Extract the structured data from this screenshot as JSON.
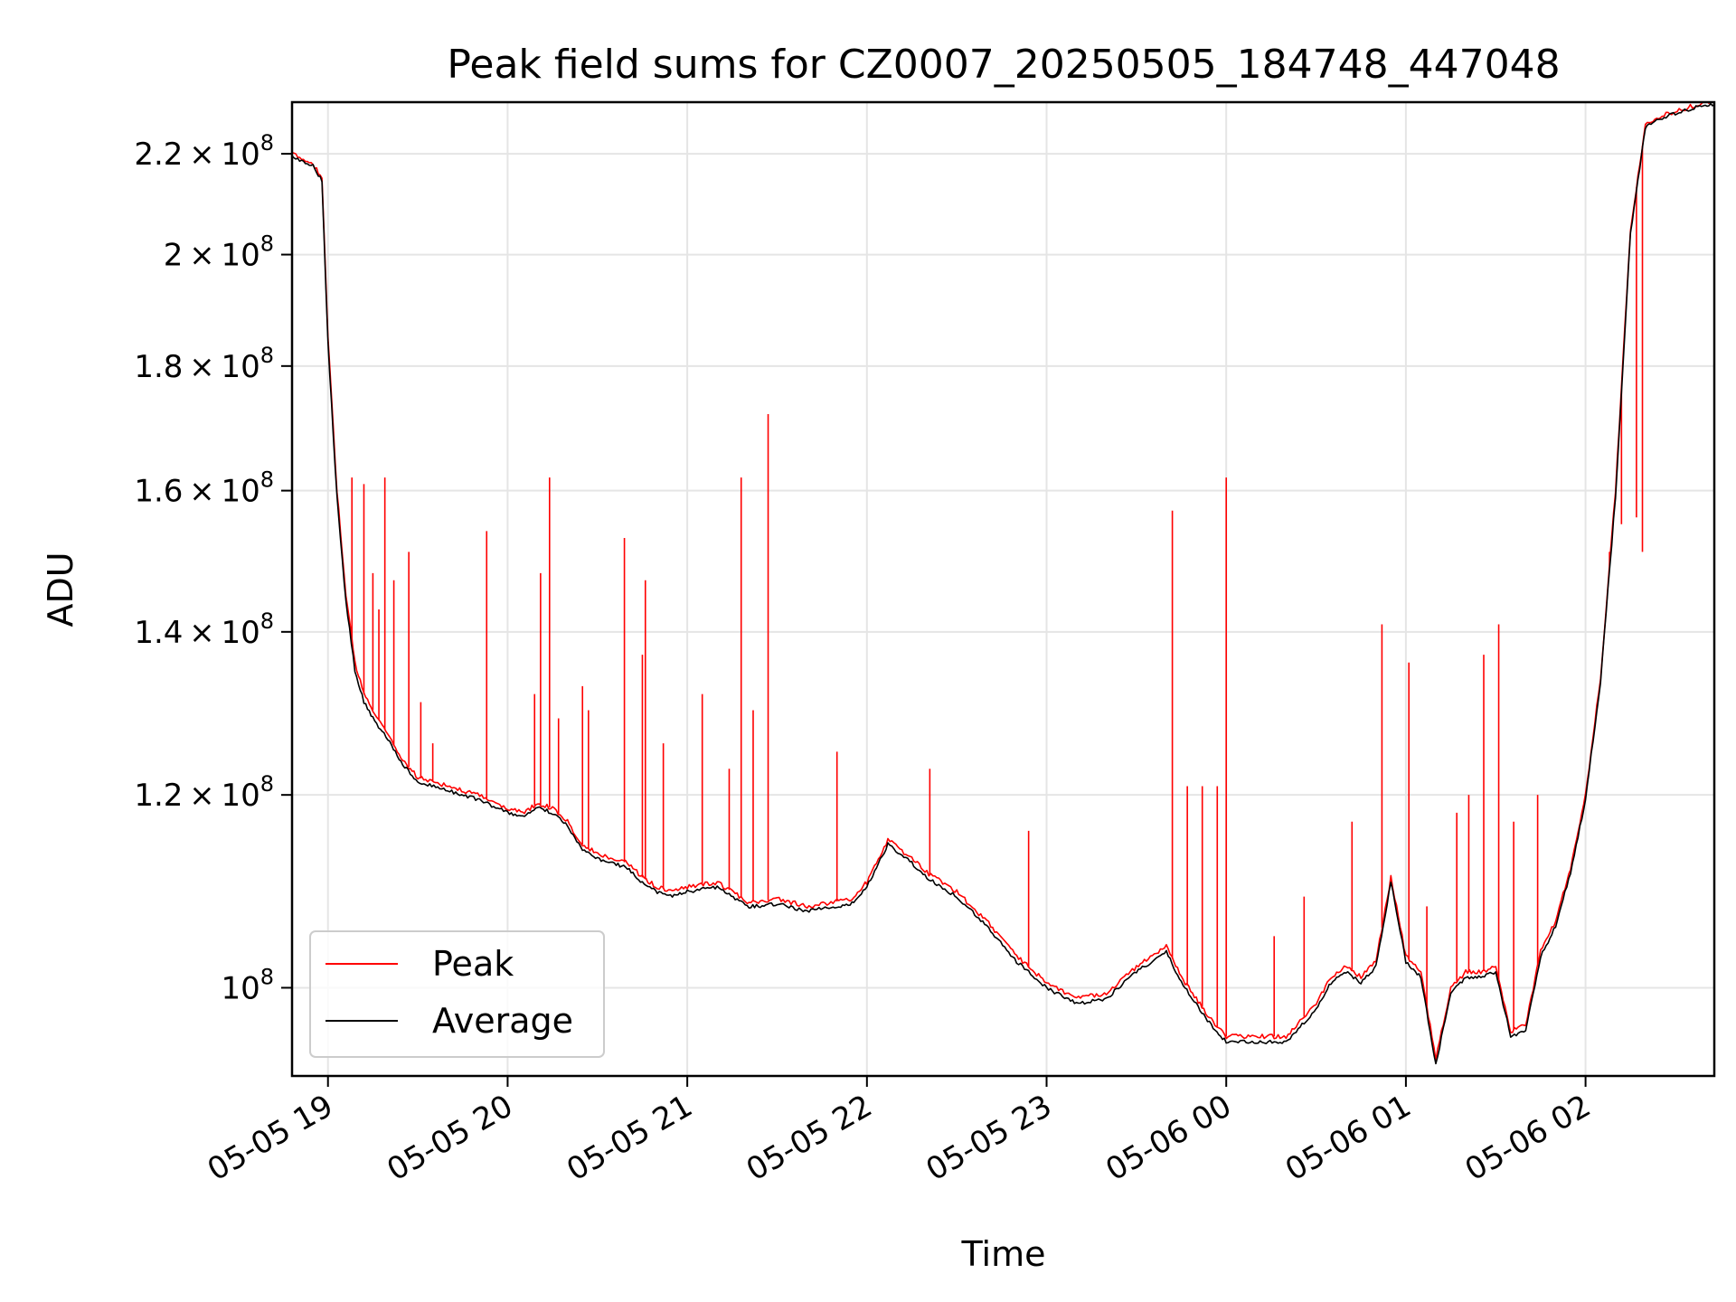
{
  "chart_data": {
    "type": "line",
    "title": "Peak field sums for CZ0007_20250505_184748_447048",
    "xlabel": "Time",
    "ylabel": "ADU",
    "y_scale": "log",
    "xlim": [
      "2025-05-05 18:48",
      "2025-05-06 02:43"
    ],
    "ylim": [
      92000000,
      231000000
    ],
    "x_ticks": [
      "05-05 19",
      "05-05 20",
      "05-05 21",
      "05-05 22",
      "05-05 23",
      "05-06 00",
      "05-06 01",
      "05-06 02"
    ],
    "y_ticks": [
      {
        "value": 100000000,
        "mantissa": "",
        "exponent": "8"
      },
      {
        "value": 120000000,
        "mantissa": "1.2",
        "exponent": "8"
      },
      {
        "value": 140000000,
        "mantissa": "1.4",
        "exponent": "8"
      },
      {
        "value": 160000000,
        "mantissa": "1.6",
        "exponent": "8"
      },
      {
        "value": 180000000,
        "mantissa": "1.8",
        "exponent": "8"
      },
      {
        "value": 200000000,
        "mantissa": "2",
        "exponent": "8"
      },
      {
        "value": 220000000,
        "mantissa": "2.2",
        "exponent": "8"
      }
    ],
    "grid": true,
    "legend": "lower-left",
    "series": [
      {
        "name": "Peak",
        "color": "#ff0000",
        "x": [
          "2025-05-05 18:48",
          "2025-05-05 18:55",
          "2025-05-05 18:58",
          "2025-05-05 19:00",
          "2025-05-05 19:03",
          "2025-05-05 19:06",
          "2025-05-05 19:09",
          "2025-05-05 19:12",
          "2025-05-05 19:15",
          "2025-05-05 19:20",
          "2025-05-05 19:25",
          "2025-05-05 19:30",
          "2025-05-05 19:40",
          "2025-05-05 19:50",
          "2025-05-05 20:00",
          "2025-05-05 20:05",
          "2025-05-05 20:10",
          "2025-05-05 20:15",
          "2025-05-05 20:20",
          "2025-05-05 20:25",
          "2025-05-05 20:30",
          "2025-05-05 20:35",
          "2025-05-05 20:40",
          "2025-05-05 20:45",
          "2025-05-05 20:50",
          "2025-05-05 20:55",
          "2025-05-05 21:00",
          "2025-05-05 21:10",
          "2025-05-05 21:20",
          "2025-05-05 21:25",
          "2025-05-05 21:30",
          "2025-05-05 21:40",
          "2025-05-05 21:50",
          "2025-05-05 21:55",
          "2025-05-05 22:00",
          "2025-05-05 22:07",
          "2025-05-05 22:15",
          "2025-05-05 22:20",
          "2025-05-05 22:30",
          "2025-05-05 22:40",
          "2025-05-05 22:50",
          "2025-05-05 23:00",
          "2025-05-05 23:10",
          "2025-05-05 23:20",
          "2025-05-05 23:30",
          "2025-05-05 23:40",
          "2025-05-05 23:45",
          "2025-05-05 23:50",
          "2025-05-05 23:55",
          "2025-05-06 00:00",
          "2025-05-06 00:10",
          "2025-05-06 00:20",
          "2025-05-06 00:30",
          "2025-05-06 00:35",
          "2025-05-06 00:40",
          "2025-05-06 00:45",
          "2025-05-06 00:50",
          "2025-05-06 00:55",
          "2025-05-06 01:00",
          "2025-05-06 01:05",
          "2025-05-06 01:10",
          "2025-05-06 01:15",
          "2025-05-06 01:20",
          "2025-05-06 01:25",
          "2025-05-06 01:30",
          "2025-05-06 01:35",
          "2025-05-06 01:40",
          "2025-05-06 01:45",
          "2025-05-06 01:50",
          "2025-05-06 01:55",
          "2025-05-06 02:00",
          "2025-05-06 02:05",
          "2025-05-06 02:10",
          "2025-05-06 02:15",
          "2025-05-06 02:20",
          "2025-05-06 02:25",
          "2025-05-06 02:30",
          "2025-05-06 02:35",
          "2025-05-06 02:40",
          "2025-05-06 02:43"
        ],
        "values": [
          220000000,
          218000000,
          215000000,
          185000000,
          160000000,
          145000000,
          136000000,
          132000000,
          130000000,
          127000000,
          124000000,
          122000000,
          121000000,
          120000000,
          118500000,
          118000000,
          119000000,
          118500000,
          117000000,
          114500000,
          113500000,
          113000000,
          112500000,
          111000000,
          110000000,
          109500000,
          110000000,
          110500000,
          108500000,
          108500000,
          108800000,
          108000000,
          108500000,
          108800000,
          110500000,
          115000000,
          113000000,
          111500000,
          109500000,
          106500000,
          103000000,
          100500000,
          99000000,
          99500000,
          102000000,
          104000000,
          101000000,
          99000000,
          97000000,
          95500000,
          95500000,
          95500000,
          98500000,
          101000000,
          102000000,
          101000000,
          102500000,
          111000000,
          103000000,
          101500000,
          93500000,
          100000000,
          101500000,
          101500000,
          102000000,
          96000000,
          96500000,
          103500000,
          106500000,
          112000000,
          120000000,
          134000000,
          160000000,
          205000000,
          226000000,
          228000000,
          229000000,
          230000000,
          231000000,
          231000000
        ]
      },
      {
        "name": "Average",
        "color": "#000000",
        "x": [
          "2025-05-05 18:48",
          "2025-05-05 18:55",
          "2025-05-05 18:58",
          "2025-05-05 19:00",
          "2025-05-05 19:03",
          "2025-05-05 19:06",
          "2025-05-05 19:09",
          "2025-05-05 19:12",
          "2025-05-05 19:15",
          "2025-05-05 19:20",
          "2025-05-05 19:25",
          "2025-05-05 19:30",
          "2025-05-05 19:40",
          "2025-05-05 19:50",
          "2025-05-05 20:00",
          "2025-05-05 20:05",
          "2025-05-05 20:10",
          "2025-05-05 20:15",
          "2025-05-05 20:20",
          "2025-05-05 20:25",
          "2025-05-05 20:30",
          "2025-05-05 20:35",
          "2025-05-05 20:40",
          "2025-05-05 20:45",
          "2025-05-05 20:50",
          "2025-05-05 20:55",
          "2025-05-05 21:00",
          "2025-05-05 21:10",
          "2025-05-05 21:20",
          "2025-05-05 21:25",
          "2025-05-05 21:30",
          "2025-05-05 21:40",
          "2025-05-05 21:50",
          "2025-05-05 21:55",
          "2025-05-05 22:00",
          "2025-05-05 22:07",
          "2025-05-05 22:15",
          "2025-05-05 22:20",
          "2025-05-05 22:30",
          "2025-05-05 22:40",
          "2025-05-05 22:50",
          "2025-05-05 23:00",
          "2025-05-05 23:10",
          "2025-05-05 23:20",
          "2025-05-05 23:30",
          "2025-05-05 23:40",
          "2025-05-05 23:45",
          "2025-05-05 23:50",
          "2025-05-05 23:55",
          "2025-05-06 00:00",
          "2025-05-06 00:10",
          "2025-05-06 00:20",
          "2025-05-06 00:30",
          "2025-05-06 00:35",
          "2025-05-06 00:40",
          "2025-05-06 00:45",
          "2025-05-06 00:50",
          "2025-05-06 00:55",
          "2025-05-06 01:00",
          "2025-05-06 01:05",
          "2025-05-06 01:10",
          "2025-05-06 01:15",
          "2025-05-06 01:20",
          "2025-05-06 01:25",
          "2025-05-06 01:30",
          "2025-05-06 01:35",
          "2025-05-06 01:40",
          "2025-05-06 01:45",
          "2025-05-06 01:50",
          "2025-05-06 01:55",
          "2025-05-06 02:00",
          "2025-05-06 02:05",
          "2025-05-06 02:10",
          "2025-05-06 02:15",
          "2025-05-06 02:20",
          "2025-05-06 02:25",
          "2025-05-06 02:30",
          "2025-05-06 02:35",
          "2025-05-06 02:40",
          "2025-05-06 02:43"
        ],
        "values": [
          219500000,
          217500000,
          214500000,
          184000000,
          159000000,
          144000000,
          135000000,
          131000000,
          129000000,
          126500000,
          123500000,
          121500000,
          120500000,
          119500000,
          118000000,
          117500000,
          118500000,
          118000000,
          116500000,
          114000000,
          113000000,
          112500000,
          112000000,
          110500000,
          109500000,
          109000000,
          109500000,
          110000000,
          108000000,
          108000000,
          108300000,
          107500000,
          108000000,
          108300000,
          110000000,
          114500000,
          112500000,
          111000000,
          109000000,
          106000000,
          102500000,
          100000000,
          98500000,
          99000000,
          101500000,
          103500000,
          100500000,
          98500000,
          96500000,
          95000000,
          95000000,
          95000000,
          98000000,
          100500000,
          101500000,
          100500000,
          102000000,
          110500000,
          102500000,
          101000000,
          93000000,
          99500000,
          101000000,
          101000000,
          101500000,
          95500000,
          96000000,
          103000000,
          106000000,
          111500000,
          119500000,
          133500000,
          159000000,
          204000000,
          225500000,
          227500000,
          228500000,
          229500000,
          230500000,
          230500000
        ]
      }
    ],
    "spikes": {
      "name": "Peak",
      "x": [
        "2025-05-05 19:08",
        "2025-05-05 19:12",
        "2025-05-05 19:15",
        "2025-05-05 19:17",
        "2025-05-05 19:19",
        "2025-05-05 19:22",
        "2025-05-05 19:27",
        "2025-05-05 19:31",
        "2025-05-05 19:35",
        "2025-05-05 19:53",
        "2025-05-05 20:09",
        "2025-05-05 20:11",
        "2025-05-05 20:14",
        "2025-05-05 20:17",
        "2025-05-05 20:25",
        "2025-05-05 20:27",
        "2025-05-05 20:39",
        "2025-05-05 20:45",
        "2025-05-05 20:46",
        "2025-05-05 20:52",
        "2025-05-05 21:05",
        "2025-05-05 21:14",
        "2025-05-05 21:18",
        "2025-05-05 21:22",
        "2025-05-05 21:27",
        "2025-05-05 21:50",
        "2025-05-05 22:21",
        "2025-05-05 22:54",
        "2025-05-05 23:42",
        "2025-05-05 23:47",
        "2025-05-05 23:52",
        "2025-05-05 23:57",
        "2025-05-06 00:00",
        "2025-05-06 00:16",
        "2025-05-06 00:26",
        "2025-05-06 00:42",
        "2025-05-06 00:52",
        "2025-05-06 01:01",
        "2025-05-06 01:07",
        "2025-05-06 01:17",
        "2025-05-06 01:21",
        "2025-05-06 01:26",
        "2025-05-06 01:31",
        "2025-05-06 01:36",
        "2025-05-06 01:44",
        "2025-05-06 02:08",
        "2025-05-06 02:12",
        "2025-05-06 02:17",
        "2025-05-06 02:19"
      ],
      "values": [
        162000000,
        161000000,
        148000000,
        143000000,
        162000000,
        147000000,
        151000000,
        131000000,
        126000000,
        154000000,
        132000000,
        148000000,
        162000000,
        129000000,
        133000000,
        130000000,
        153000000,
        137000000,
        147000000,
        126000000,
        132000000,
        123000000,
        162000000,
        130000000,
        172000000,
        125000000,
        123000000,
        116000000,
        157000000,
        121000000,
        121000000,
        121000000,
        162000000,
        105000000,
        109000000,
        117000000,
        141000000,
        136000000,
        108000000,
        118000000,
        120000000,
        137000000,
        141000000,
        117000000,
        120000000,
        151000000,
        155000000,
        156000000,
        151000000
      ]
    }
  }
}
